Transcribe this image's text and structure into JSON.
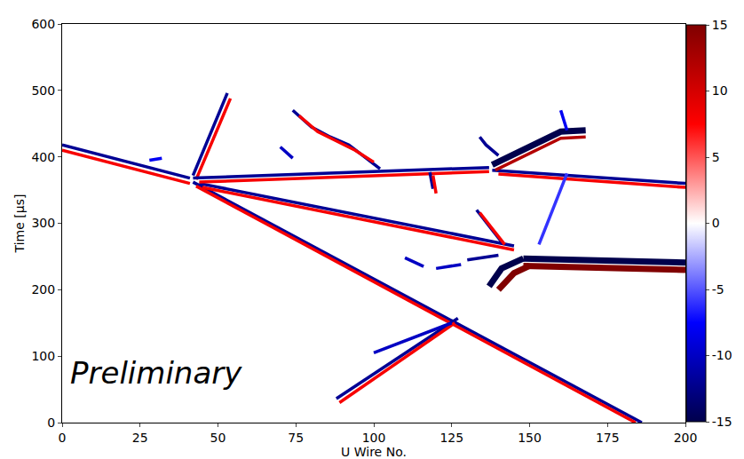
{
  "chart_data": {
    "type": "event_display",
    "xlabel": "U Wire No.",
    "ylabel": "Time [μs]",
    "annotation": "Preliminary",
    "xlim": [
      0,
      200
    ],
    "xticks": [
      0,
      25,
      50,
      75,
      100,
      125,
      150,
      175,
      200
    ],
    "ylim": [
      0,
      600
    ],
    "yticks": [
      0,
      100,
      200,
      300,
      400,
      500,
      600
    ],
    "grid": false,
    "colorbar": {
      "range": [
        -15,
        15
      ],
      "ticks": [
        -15,
        -10,
        -5,
        0,
        5,
        10,
        15
      ]
    },
    "tracks": [
      {
        "wire": [
          0,
          41
        ],
        "time": [
          418,
          368
        ],
        "signal": -12
      },
      {
        "wire": [
          0,
          41
        ],
        "time": [
          410,
          360
        ],
        "signal": 8
      },
      {
        "wire": [
          42,
          53
        ],
        "time": [
          372,
          496
        ],
        "signal": -12
      },
      {
        "wire": [
          43,
          54
        ],
        "time": [
          366,
          488
        ],
        "signal": 8
      },
      {
        "wire": [
          42,
          186
        ],
        "time": [
          362,
          0
        ],
        "signal": -12
      },
      {
        "wire": [
          43,
          184
        ],
        "time": [
          356,
          0
        ],
        "signal": 8
      },
      {
        "wire": [
          44,
          145
        ],
        "time": [
          360,
          266
        ],
        "signal": -12
      },
      {
        "wire": [
          45,
          145
        ],
        "time": [
          354,
          260
        ],
        "signal": 8
      },
      {
        "wire": [
          42,
          100,
          137
        ],
        "time": [
          368,
          378,
          384
        ],
        "signal": -12
      },
      {
        "wire": [
          44,
          100,
          137
        ],
        "time": [
          362,
          372,
          378
        ],
        "signal": 8
      },
      {
        "wire": [
          138,
          200
        ],
        "time": [
          380,
          360
        ],
        "signal": -12
      },
      {
        "wire": [
          140,
          200
        ],
        "time": [
          374,
          354
        ],
        "signal": 8
      },
      {
        "wire": [
          88,
          127
        ],
        "time": [
          36,
          157
        ],
        "signal": -12
      },
      {
        "wire": [
          89,
          126
        ],
        "time": [
          30,
          150
        ],
        "signal": 8
      },
      {
        "wire": [
          100,
          125
        ],
        "time": [
          105,
          150
        ],
        "signal": -10
      },
      {
        "wire": [
          148,
          200
        ],
        "time": [
          247,
          241
        ],
        "signal": -15,
        "line_style": "thick"
      },
      {
        "wire": [
          148,
          200
        ],
        "time": [
          236,
          230
        ],
        "signal": 15,
        "line_style": "thick"
      },
      {
        "wire": [
          137,
          141,
          148
        ],
        "time": [
          205,
          232,
          247
        ],
        "signal": -15,
        "line_style": "thick"
      },
      {
        "wire": [
          140,
          145,
          150
        ],
        "time": [
          200,
          225,
          236
        ],
        "signal": 15,
        "line_style": "thick"
      },
      {
        "wire": [
          138,
          160,
          168
        ],
        "time": [
          388,
          438,
          440
        ],
        "signal": -15,
        "line_style": "thick"
      },
      {
        "wire": [
          139,
          160,
          168
        ],
        "time": [
          380,
          428,
          430
        ],
        "signal": 12
      },
      {
        "wire": [
          162,
          153
        ],
        "time": [
          375,
          268
        ],
        "signal": -6
      },
      {
        "wire": [
          74,
          80,
          86,
          92,
          97,
          102
        ],
        "time": [
          470,
          445,
          430,
          418,
          400,
          382
        ],
        "signal": -12
      },
      {
        "wire": [
          76,
          82,
          88,
          94,
          100
        ],
        "time": [
          462,
          438,
          424,
          410,
          392
        ],
        "signal": 8
      },
      {
        "wire": [
          70,
          74
        ],
        "time": [
          415,
          398
        ],
        "signal": -10
      },
      {
        "wire": [
          118,
          119
        ],
        "time": [
          377,
          352
        ],
        "signal": -12
      },
      {
        "wire": [
          119,
          120
        ],
        "time": [
          372,
          345
        ],
        "signal": 8
      },
      {
        "wire": [
          134,
          136,
          140
        ],
        "time": [
          430,
          418,
          402
        ],
        "signal": -12
      },
      {
        "wire": [
          110,
          116
        ],
        "time": [
          248,
          235
        ],
        "signal": -10
      },
      {
        "wire": [
          120,
          128
        ],
        "time": [
          232,
          238
        ],
        "signal": -10
      },
      {
        "wire": [
          130,
          140
        ],
        "time": [
          245,
          252
        ],
        "signal": -12
      },
      {
        "wire": [
          133,
          141
        ],
        "time": [
          320,
          272
        ],
        "signal": -12
      },
      {
        "wire": [
          134,
          142
        ],
        "time": [
          316,
          268
        ],
        "signal": 8
      },
      {
        "wire": [
          160,
          162
        ],
        "time": [
          470,
          440
        ],
        "signal": -8
      },
      {
        "wire": [
          28,
          32
        ],
        "time": [
          395,
          398
        ],
        "signal": -8
      }
    ]
  }
}
